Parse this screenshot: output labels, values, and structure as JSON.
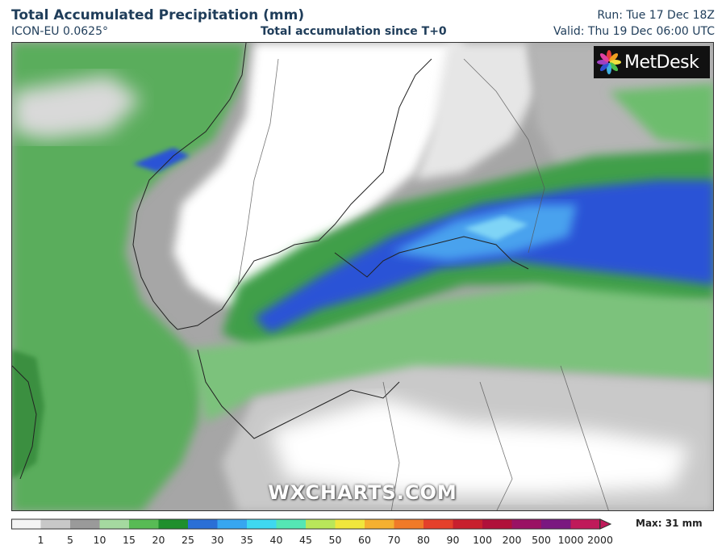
{
  "header": {
    "title": "Total Accumulated Precipitation (mm)",
    "model": "ICON-EU 0.0625°",
    "subtitle": "Total accumulation since T+0",
    "run": "Run: Tue 17 Dec 18Z",
    "valid": "Valid: Thu 19 Dec 06:00 UTC"
  },
  "logo": {
    "text": "MetDesk"
  },
  "watermark": "WXCHARTS.COM",
  "legend": {
    "max_label": "Max: 31 mm",
    "ticks": [
      "1",
      "5",
      "10",
      "15",
      "20",
      "25",
      "30",
      "35",
      "40",
      "45",
      "50",
      "60",
      "70",
      "80",
      "90",
      "100",
      "200",
      "500",
      "1000",
      "2000"
    ],
    "colors": [
      "#f4f4f4",
      "#c8c8c8",
      "#9a9a9a",
      "#a5d9a0",
      "#58bb55",
      "#1f8f2d",
      "#2a6fd6",
      "#37a6f0",
      "#3fd8f0",
      "#55e6b4",
      "#b9e65a",
      "#f0e63c",
      "#f5b030",
      "#f07a28",
      "#e4402a",
      "#c8202e",
      "#b0103a",
      "#9a1264",
      "#7a1880",
      "#c01a5a"
    ]
  },
  "map_colors": {
    "sea_green": "#5aad5c",
    "green_dark": "#2f8f3a",
    "blue": "#2a52d6",
    "light_blue": "#4aa2ee",
    "gray": "#a8a8a8",
    "white": "#ffffff"
  }
}
